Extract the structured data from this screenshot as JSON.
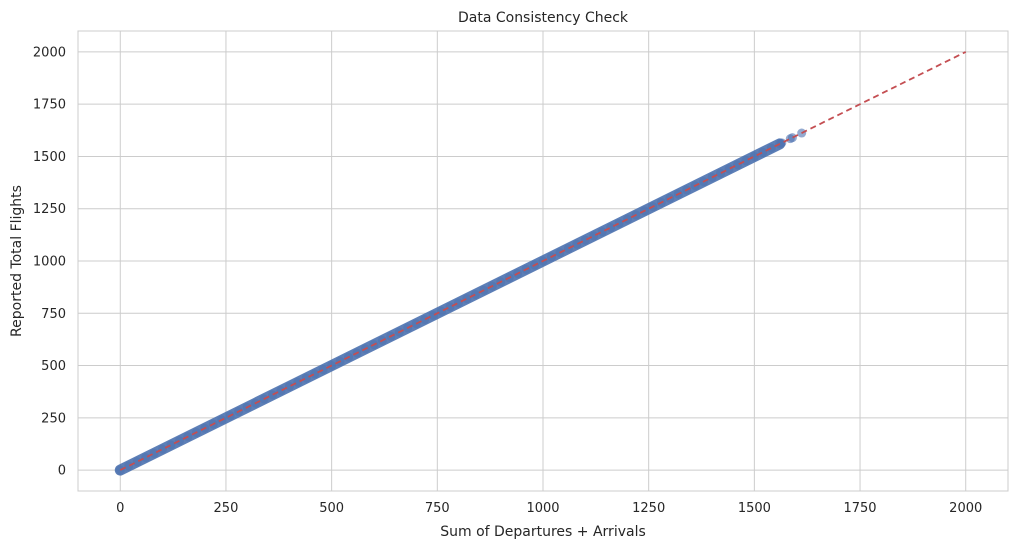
{
  "chart_data": {
    "type": "scatter",
    "title": "Data Consistency Check",
    "xlabel": "Sum of Departures + Arrivals",
    "ylabel": "Reported Total Flights",
    "xlim": [
      -100,
      2100
    ],
    "ylim": [
      -100,
      2100
    ],
    "xticks": [
      0,
      250,
      500,
      750,
      1000,
      1250,
      1500,
      1750,
      2000
    ],
    "yticks": [
      0,
      250,
      500,
      750,
      1000,
      1250,
      1500,
      1750,
      2000
    ],
    "grid": true,
    "series": [
      {
        "kind": "points",
        "color": "#4c72b0",
        "range": [
          0,
          1560
        ],
        "x": [
          1565,
          1585,
          1590,
          1612
        ],
        "y": [
          1565,
          1585,
          1590,
          1612
        ]
      },
      {
        "kind": "reference-line",
        "style": "dashed",
        "color": "#c44e52",
        "x": [
          0,
          2000
        ],
        "y": [
          0,
          2000
        ]
      }
    ]
  }
}
